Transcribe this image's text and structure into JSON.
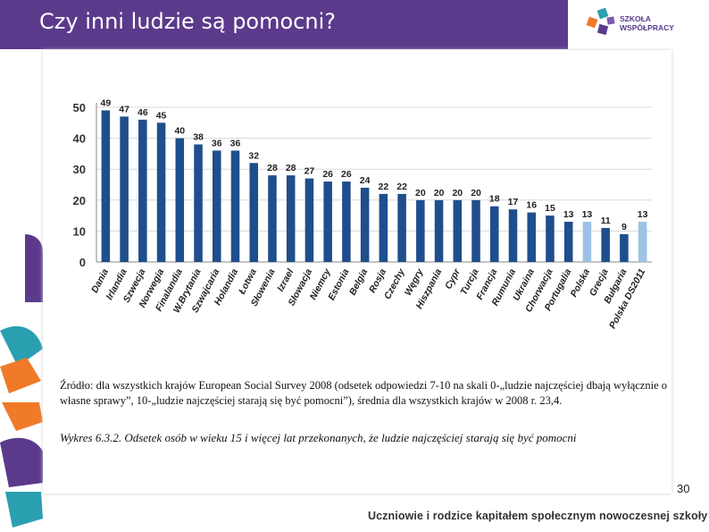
{
  "slide": {
    "title": "Czy inni ludzie są pomocni?",
    "logo_line1": "SZKOŁA",
    "logo_line2": "WSPÓŁPRACY",
    "source_note": "Źródło: dla wszystkich krajów European Social Survey 2008 (odsetek odpowiedzi 7-10 na skali 0-„ludzie najczęściej dbają wyłącznie o własne sprawy”, 10-„ludzie najczęściej starają się być pomocni”), średnia dla wszystkich krajów w 2008 r. 23,4.",
    "figure_caption": "Wykres 6.3.2. Odsetek osób w wieku 15 i więcej lat przekonanych, że ludzie najczęściej starają się być pomocni",
    "page_number": "30",
    "footer": "Uczniowie i rodzice kapitałem społecznym nowoczesnej szkoły"
  },
  "colors": {
    "title_bar": "#5b3a8c",
    "bar_dark": "#1f4e8c",
    "bar_light": "#9cc3e6",
    "accent_purple": "#5b3a8c",
    "accent_teal": "#2a9fb0",
    "accent_orange": "#f07a28"
  },
  "chart_data": {
    "type": "bar",
    "title": "",
    "xlabel": "",
    "ylabel": "",
    "ylim": [
      0,
      50
    ],
    "yticks": [
      0,
      10,
      20,
      30,
      40,
      50
    ],
    "grid": true,
    "categories": [
      "Dania",
      "Irlandia",
      "Szwecja",
      "Norwegia",
      "Finalandia",
      "W.Brytania",
      "Szwajcaria",
      "Holandia",
      "Łotwa",
      "Słowenia",
      "Izrael",
      "Słowacja",
      "Niemcy",
      "Estonia",
      "Belgia",
      "Rosja",
      "Czechy",
      "Węgry",
      "Hiszpania",
      "Cypr",
      "Turcja",
      "Francja",
      "Rumunia",
      "Ukraina",
      "Chorwacja",
      "Portugalia",
      "Polska",
      "Grecja",
      "Bułgaria",
      "Polska DS2011"
    ],
    "values": [
      49,
      47,
      46,
      45,
      40,
      38,
      36,
      36,
      32,
      28,
      28,
      27,
      26,
      26,
      24,
      22,
      22,
      20,
      20,
      20,
      20,
      18,
      17,
      16,
      15,
      13,
      13,
      11,
      9,
      13
    ],
    "highlighted": [
      "Polska",
      "Polska DS2011"
    ]
  }
}
